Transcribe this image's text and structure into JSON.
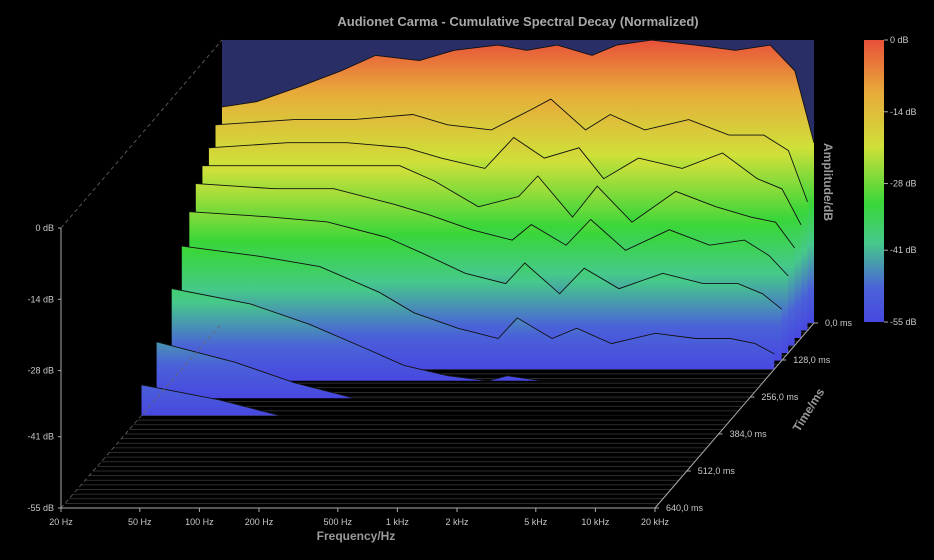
{
  "chart_data": {
    "type": "waterfall-3d",
    "title": "Audionet Carma - Cumulative Spectral Decay (Normalized)",
    "xlabel": "Frequency/Hz",
    "ylabel": "Amplitude/dB",
    "zlabel": "Time/ms",
    "x_scale": "log",
    "x_ticks": [
      "20 Hz",
      "50 Hz",
      "100 Hz",
      "200 Hz",
      "500 Hz",
      "1 kHz",
      "2 kHz",
      "5 kHz",
      "10 kHz",
      "20 kHz"
    ],
    "x_tick_values": [
      20,
      50,
      100,
      200,
      500,
      1000,
      2000,
      5000,
      10000,
      20000
    ],
    "y_ticks": [
      "0 dB",
      "-14 dB",
      "-28 dB",
      "-41 dB",
      "-55 dB"
    ],
    "y_tick_values": [
      0,
      -14,
      -28,
      -41,
      -55
    ],
    "ylim": [
      -55,
      0
    ],
    "z_ticks": [
      "0,0 ms",
      "128,0 ms",
      "256,0 ms",
      "384,0 ms",
      "512,0 ms",
      "640,0 ms"
    ],
    "z_tick_values": [
      0,
      128,
      256,
      384,
      512,
      640
    ],
    "colorbar_ticks": [
      "0 dB",
      "-14 dB",
      "-28 dB",
      "-41 dB",
      "-55 dB"
    ],
    "colorbar_colors": [
      "#e8503a",
      "#e8a83a",
      "#cfe03a",
      "#39d63a",
      "#46c98a",
      "#4a62d8",
      "#4848e0"
    ],
    "slices": [
      {
        "time_ms": 0,
        "points": [
          [
            20,
            -13
          ],
          [
            30,
            -12
          ],
          [
            50,
            -9
          ],
          [
            80,
            -6
          ],
          [
            120,
            -3
          ],
          [
            200,
            -4
          ],
          [
            300,
            -2
          ],
          [
            500,
            -1
          ],
          [
            700,
            -2
          ],
          [
            1000,
            -1
          ],
          [
            1500,
            -3
          ],
          [
            2000,
            -1
          ],
          [
            3000,
            0
          ],
          [
            5000,
            -1
          ],
          [
            8000,
            -2
          ],
          [
            12000,
            -1
          ],
          [
            16000,
            -6
          ],
          [
            20000,
            -20
          ]
        ]
      },
      {
        "time_ms": 26,
        "points": [
          [
            20,
            -15
          ],
          [
            50,
            -14
          ],
          [
            100,
            -14
          ],
          [
            200,
            -13
          ],
          [
            300,
            -15
          ],
          [
            500,
            -16
          ],
          [
            800,
            -12
          ],
          [
            1000,
            -10
          ],
          [
            1500,
            -16
          ],
          [
            2000,
            -13
          ],
          [
            3000,
            -16
          ],
          [
            5000,
            -14
          ],
          [
            8000,
            -17
          ],
          [
            12000,
            -17
          ],
          [
            16000,
            -20
          ],
          [
            20000,
            -30
          ]
        ]
      },
      {
        "time_ms": 52,
        "points": [
          [
            20,
            -18
          ],
          [
            50,
            -17
          ],
          [
            100,
            -17
          ],
          [
            200,
            -18
          ],
          [
            300,
            -20
          ],
          [
            500,
            -22
          ],
          [
            700,
            -16
          ],
          [
            1000,
            -20
          ],
          [
            1500,
            -18
          ],
          [
            2000,
            -24
          ],
          [
            3000,
            -20
          ],
          [
            5000,
            -22
          ],
          [
            8000,
            -19
          ],
          [
            12000,
            -24
          ],
          [
            16000,
            -26
          ],
          [
            20000,
            -33
          ]
        ]
      },
      {
        "time_ms": 78,
        "points": [
          [
            20,
            -20
          ],
          [
            50,
            -20
          ],
          [
            100,
            -20
          ],
          [
            200,
            -20
          ],
          [
            300,
            -23
          ],
          [
            500,
            -28
          ],
          [
            800,
            -26
          ],
          [
            1000,
            -22
          ],
          [
            1500,
            -30
          ],
          [
            2000,
            -24
          ],
          [
            3000,
            -31
          ],
          [
            5000,
            -25
          ],
          [
            8000,
            -28
          ],
          [
            12000,
            -30
          ],
          [
            16000,
            -31
          ],
          [
            20000,
            -36
          ]
        ]
      },
      {
        "time_ms": 104,
        "points": [
          [
            20,
            -22
          ],
          [
            50,
            -23
          ],
          [
            100,
            -23
          ],
          [
            200,
            -26
          ],
          [
            300,
            -28
          ],
          [
            500,
            -31
          ],
          [
            800,
            -33
          ],
          [
            1000,
            -30
          ],
          [
            1500,
            -34
          ],
          [
            2000,
            -29
          ],
          [
            3000,
            -35
          ],
          [
            5000,
            -31
          ],
          [
            8000,
            -34
          ],
          [
            12000,
            -33
          ],
          [
            16000,
            -36
          ],
          [
            20000,
            -40
          ]
        ]
      },
      {
        "time_ms": 130,
        "points": [
          [
            20,
            -26
          ],
          [
            50,
            -27
          ],
          [
            100,
            -28
          ],
          [
            200,
            -31
          ],
          [
            300,
            -34
          ],
          [
            500,
            -38
          ],
          [
            800,
            -40
          ],
          [
            1000,
            -36
          ],
          [
            1500,
            -42
          ],
          [
            2000,
            -37
          ],
          [
            3000,
            -41
          ],
          [
            5000,
            -38
          ],
          [
            8000,
            -40
          ],
          [
            12000,
            -40
          ],
          [
            16000,
            -42
          ],
          [
            20000,
            -45
          ]
        ]
      },
      {
        "time_ms": 160,
        "points": [
          [
            20,
            -31
          ],
          [
            50,
            -33
          ],
          [
            100,
            -35
          ],
          [
            200,
            -40
          ],
          [
            300,
            -44
          ],
          [
            500,
            -47
          ],
          [
            800,
            -49
          ],
          [
            1000,
            -45
          ],
          [
            1500,
            -49
          ],
          [
            2000,
            -47
          ],
          [
            3000,
            -50
          ],
          [
            5000,
            -48
          ],
          [
            8000,
            -49
          ],
          [
            12000,
            -49
          ],
          [
            16000,
            -50
          ],
          [
            20000,
            -52
          ]
        ]
      },
      {
        "time_ms": 200,
        "points": [
          [
            20,
            -37
          ],
          [
            50,
            -40
          ],
          [
            100,
            -44
          ],
          [
            200,
            -49
          ],
          [
            300,
            -52
          ],
          [
            500,
            -54
          ],
          [
            800,
            -55
          ],
          [
            1000,
            -54
          ],
          [
            1500,
            -55
          ],
          [
            2000,
            -55
          ],
          [
            3000,
            -55
          ],
          [
            5000,
            -55
          ],
          [
            8000,
            -55
          ],
          [
            12000,
            -55
          ],
          [
            16000,
            -55
          ],
          [
            20000,
            -55
          ]
        ]
      },
      {
        "time_ms": 260,
        "points": [
          [
            20,
            -44
          ],
          [
            50,
            -48
          ],
          [
            100,
            -52
          ],
          [
            200,
            -55
          ],
          [
            300,
            -55
          ],
          [
            500,
            -55
          ],
          [
            800,
            -55
          ],
          [
            1000,
            -55
          ],
          [
            2000,
            -55
          ],
          [
            5000,
            -55
          ],
          [
            10000,
            -55
          ],
          [
            20000,
            -55
          ]
        ]
      },
      {
        "time_ms": 320,
        "points": [
          [
            20,
            -49
          ],
          [
            50,
            -52
          ],
          [
            100,
            -55
          ],
          [
            200,
            -55
          ],
          [
            500,
            -55
          ],
          [
            1000,
            -55
          ],
          [
            2000,
            -55
          ],
          [
            5000,
            -55
          ],
          [
            10000,
            -55
          ],
          [
            20000,
            -55
          ]
        ]
      }
    ]
  }
}
